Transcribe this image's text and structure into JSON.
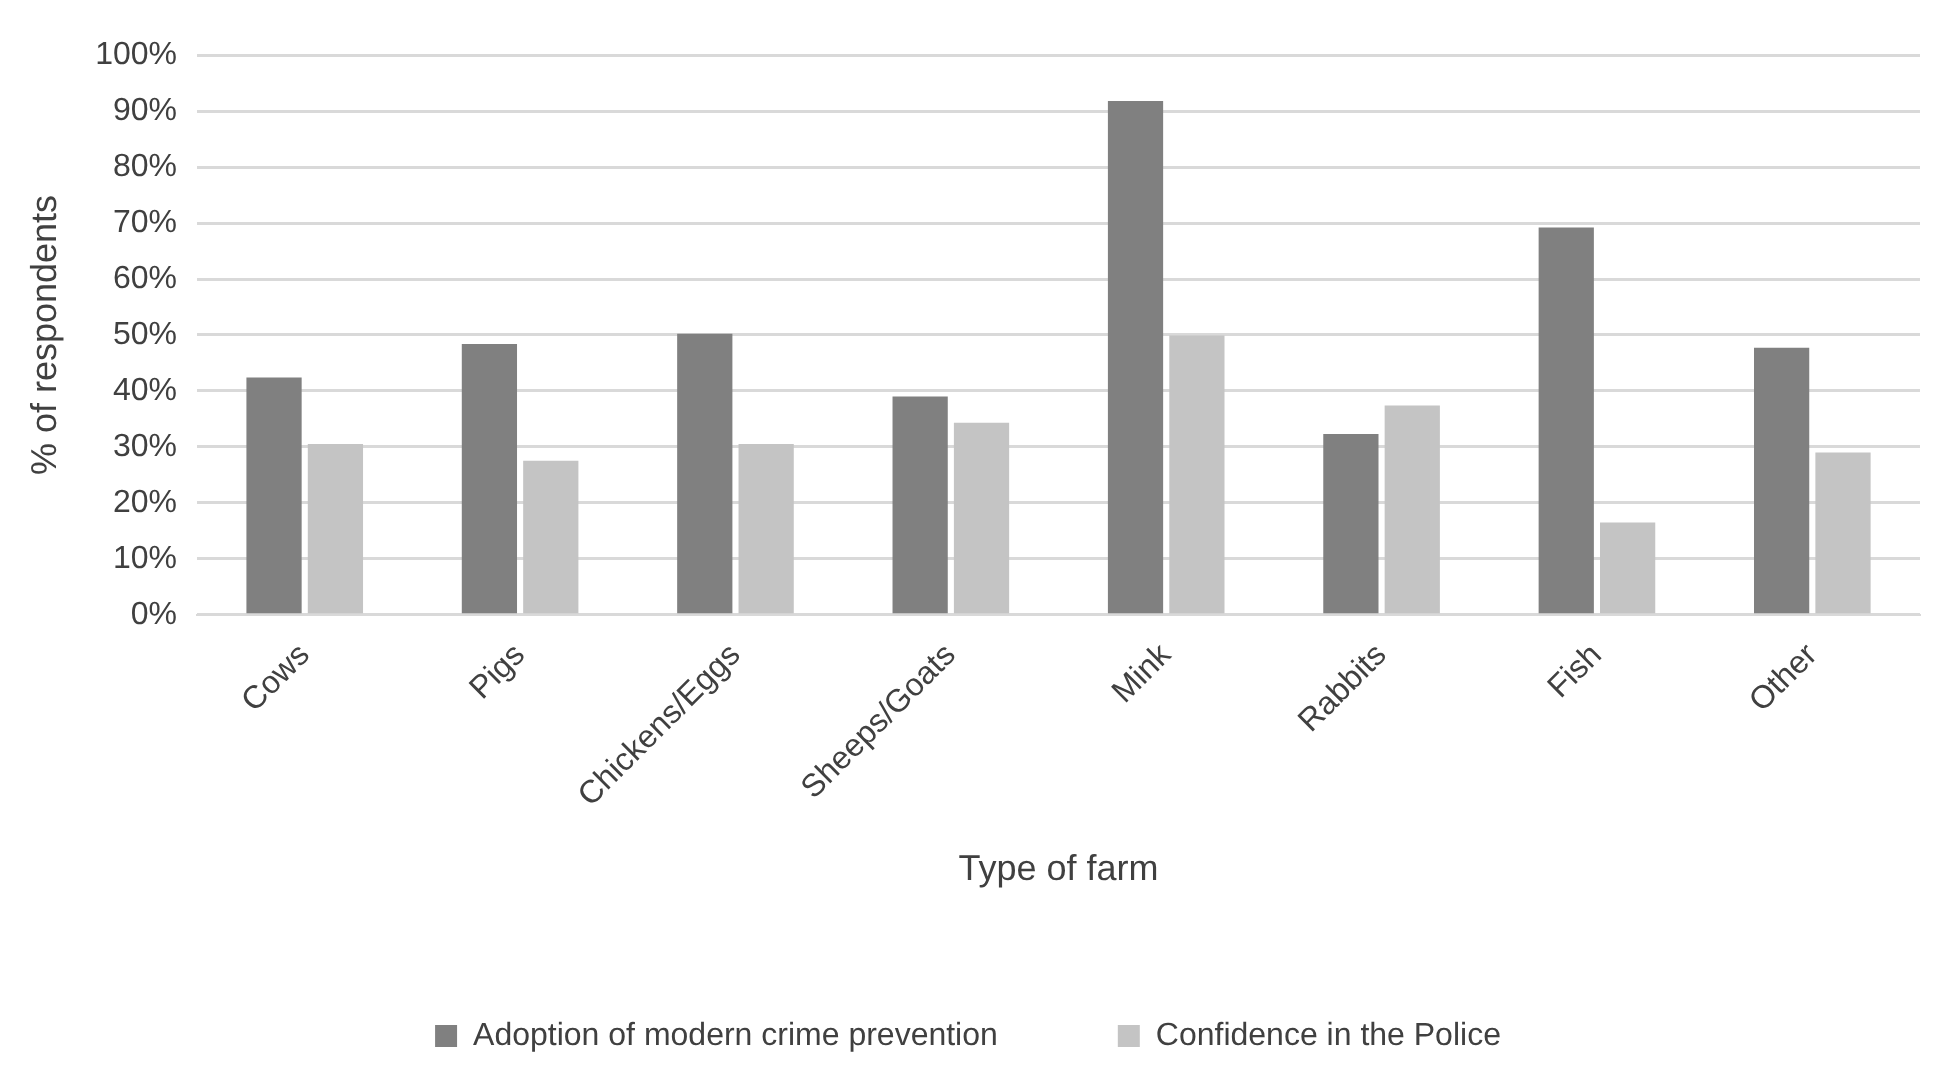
{
  "chart_data": {
    "type": "bar",
    "xlabel": "Type of farm",
    "ylabel": "% of respondents",
    "categories": [
      "Cows",
      "Pigs",
      "Chickens/Eggs",
      "Sheeps/Goats",
      "Mink",
      "Rabbits",
      "Fish",
      "Other"
    ],
    "series": [
      {
        "name": "Adoption of modern crime prevention",
        "color": "#808080",
        "values": [
          42.4,
          48.4,
          50.2,
          39.0,
          91.8,
          32.3,
          69.2,
          47.7
        ]
      },
      {
        "name": "Confidence in the Police",
        "color": "#c4c4c4",
        "values": [
          30.5,
          27.5,
          30.5,
          34.3,
          49.9,
          37.4,
          16.5,
          29.0
        ]
      }
    ],
    "ylim": [
      0,
      100
    ],
    "yticks": [
      {
        "value": 0,
        "label": "0%"
      },
      {
        "value": 10,
        "label": "10%"
      },
      {
        "value": 20,
        "label": "20%"
      },
      {
        "value": 30,
        "label": "30%"
      },
      {
        "value": 40,
        "label": "40%"
      },
      {
        "value": 50,
        "label": "50%"
      },
      {
        "value": 60,
        "label": "60%"
      },
      {
        "value": 70,
        "label": "70%"
      },
      {
        "value": 80,
        "label": "80%"
      },
      {
        "value": 90,
        "label": "90%"
      },
      {
        "value": 100,
        "label": "100%"
      }
    ],
    "grid": "y",
    "legend": "bottom"
  }
}
